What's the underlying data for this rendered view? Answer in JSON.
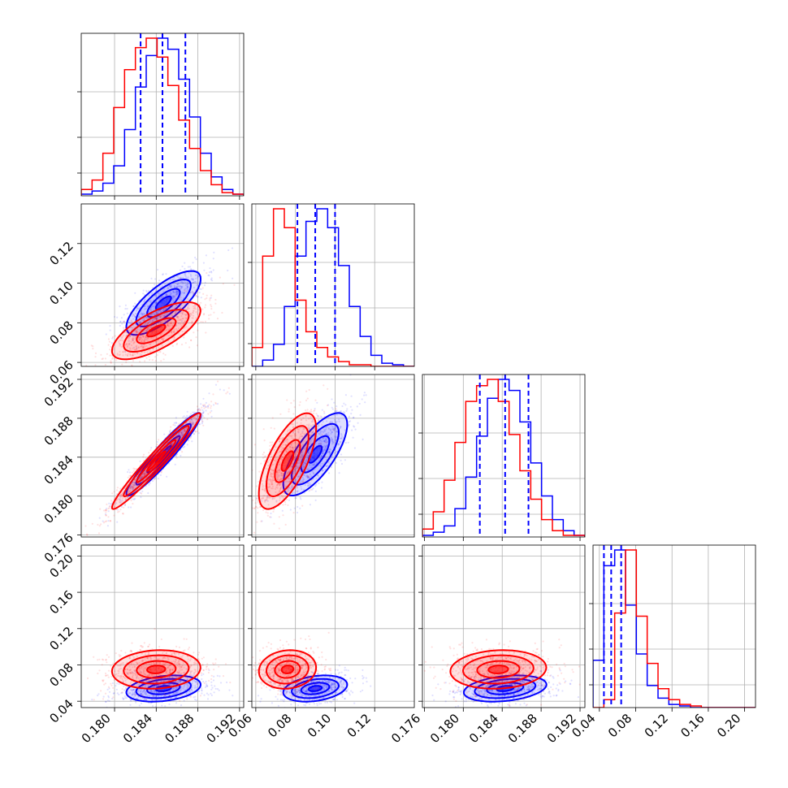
{
  "colors": {
    "series_a": "#0000ff",
    "series_b": "#ff0000",
    "grid": "#b0b0b0",
    "axes": "#000000"
  },
  "chart_data": {
    "type": "corner",
    "title": "",
    "grid": true,
    "n_params": 4,
    "params": [
      {
        "range": [
          0.1768,
          0.1924
        ],
        "ticks": [
          "0.180",
          "0.184",
          "0.188",
          "0.192"
        ]
      },
      {
        "range": [
          0.058,
          0.14
        ],
        "ticks": [
          "0.06",
          "0.08",
          "0.10",
          "0.12"
        ]
      },
      {
        "range": [
          0.1758,
          0.1925
        ],
        "ticks": [
          "0.176",
          "0.180",
          "0.184",
          "0.188",
          "0.192"
        ]
      },
      {
        "range": [
          0.033,
          0.212
        ],
        "ticks": [
          "0.04",
          "0.08",
          "0.12",
          "0.16",
          "0.20"
        ]
      }
    ],
    "quantiles": [
      {
        "q16": 0.1825,
        "q50": 0.1846,
        "q84": 0.1868
      },
      {
        "q16": 0.081,
        "q50": 0.09,
        "q84": 0.1
      },
      {
        "q16": 0.1817,
        "q50": 0.1843,
        "q84": 0.1867
      },
      {
        "q16": 0.045,
        "q50": 0.053,
        "q84": 0.064
      }
    ],
    "series": [
      {
        "name": "",
        "color": "#0000ff",
        "means": [
          0.1847,
          0.09,
          0.1843,
          0.054
        ],
        "stds": [
          0.0021,
          0.0095,
          0.0025,
          0.0085
        ],
        "corr": [
          [
            1,
            0.75,
            0.95,
            0.3
          ],
          [
            0.75,
            1,
            0.72,
            0.3
          ],
          [
            0.95,
            0.72,
            1,
            0.3
          ],
          [
            0.3,
            0.3,
            0.3,
            1
          ]
        ],
        "histograms": [
          [
            0.01,
            0.03,
            0.08,
            0.19,
            0.42,
            0.69,
            0.89,
            1.0,
            0.93,
            0.74,
            0.5,
            0.27,
            0.12,
            0.04,
            0.01
          ],
          [
            0.0,
            0.04,
            0.14,
            0.38,
            0.7,
            0.92,
            1.0,
            0.88,
            0.64,
            0.38,
            0.19,
            0.07,
            0.02,
            0.01,
            0.0
          ],
          [
            0.01,
            0.03,
            0.07,
            0.18,
            0.38,
            0.64,
            0.88,
            1.0,
            0.93,
            0.73,
            0.47,
            0.26,
            0.11,
            0.04,
            0.01
          ],
          [
            0.3,
            0.9,
            1.0,
            0.65,
            0.34,
            0.14,
            0.06,
            0.02,
            0.01,
            0.0,
            0.0,
            0.0,
            0.0,
            0.0,
            0.0
          ]
        ]
      },
      {
        "name": "",
        "color": "#ff0000",
        "means": [
          0.184,
          0.076,
          0.1836,
          0.075
        ],
        "stds": [
          0.0025,
          0.0085,
          0.0029,
          0.0125
        ],
        "corr": [
          [
            1,
            0.7,
            0.97,
            0.1
          ],
          [
            0.7,
            1,
            0.68,
            0.1
          ],
          [
            0.97,
            0.68,
            1,
            0.1
          ],
          [
            0.1,
            0.1,
            0.1,
            1
          ]
        ],
        "histograms": [
          [
            0.04,
            0.1,
            0.27,
            0.56,
            0.8,
            0.94,
            1.0,
            0.88,
            0.7,
            0.48,
            0.3,
            0.16,
            0.07,
            0.02,
            0.01
          ],
          [
            0.12,
            0.7,
            1.0,
            0.88,
            0.42,
            0.22,
            0.12,
            0.06,
            0.03,
            0.01,
            0.01,
            0.0,
            0.0,
            0.0,
            0.0
          ],
          [
            0.05,
            0.16,
            0.36,
            0.6,
            0.86,
            0.96,
            1.0,
            0.86,
            0.65,
            0.42,
            0.24,
            0.11,
            0.04,
            0.01,
            0.01
          ],
          [
            0.0,
            0.05,
            0.6,
            1.0,
            0.58,
            0.28,
            0.12,
            0.05,
            0.02,
            0.01,
            0.0,
            0.0,
            0.0,
            0.0,
            0.0
          ]
        ]
      }
    ]
  }
}
